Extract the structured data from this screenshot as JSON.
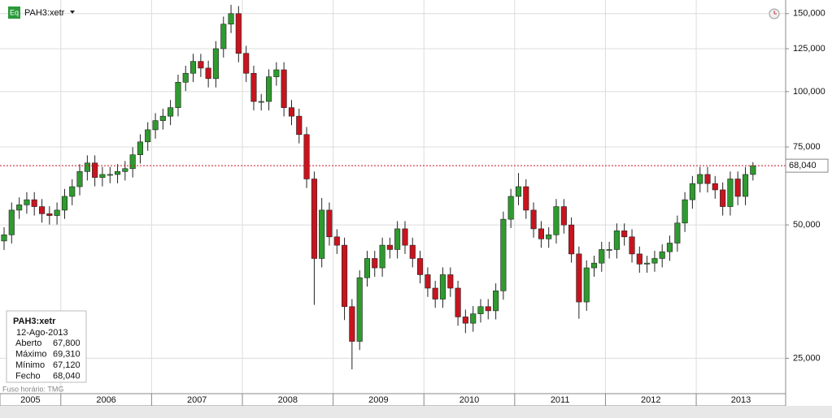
{
  "chart_data": {
    "type": "candlestick",
    "title": "PAH3:xetr",
    "x": [
      2005.375,
      2005.458,
      2005.542,
      2005.625,
      2005.708,
      2005.792,
      2005.875,
      2005.958,
      2006.042,
      2006.125,
      2006.208,
      2006.292,
      2006.375,
      2006.458,
      2006.542,
      2006.625,
      2006.708,
      2006.792,
      2006.875,
      2006.958,
      2007.042,
      2007.125,
      2007.208,
      2007.292,
      2007.375,
      2007.458,
      2007.542,
      2007.625,
      2007.708,
      2007.792,
      2007.875,
      2007.958,
      2008.042,
      2008.125,
      2008.208,
      2008.292,
      2008.375,
      2008.458,
      2008.542,
      2008.625,
      2008.708,
      2008.792,
      2008.875,
      2008.958,
      2009.042,
      2009.125,
      2009.208,
      2009.292,
      2009.375,
      2009.458,
      2009.542,
      2009.625,
      2009.708,
      2009.792,
      2009.875,
      2009.958,
      2010.042,
      2010.125,
      2010.208,
      2010.292,
      2010.375,
      2010.458,
      2010.542,
      2010.625,
      2010.708,
      2010.792,
      2010.875,
      2010.958,
      2011.042,
      2011.125,
      2011.208,
      2011.292,
      2011.375,
      2011.458,
      2011.542,
      2011.625,
      2011.708,
      2011.792,
      2011.875,
      2011.958,
      2012.042,
      2012.125,
      2012.208,
      2012.292,
      2012.375,
      2012.458,
      2012.542,
      2012.625,
      2012.708,
      2012.792,
      2012.875,
      2012.958,
      2013.042,
      2013.125,
      2013.208,
      2013.292,
      2013.375,
      2013.458,
      2013.542,
      2013.625
    ],
    "open": [
      46000,
      47500,
      54000,
      55500,
      57000,
      55000,
      53000,
      52500,
      54000,
      58000,
      61000,
      66000,
      69000,
      64000,
      65000,
      65000,
      66000,
      67000,
      72000,
      77000,
      82000,
      86000,
      88000,
      92000,
      105000,
      110000,
      117000,
      113000,
      107000,
      125000,
      142000,
      150000,
      122000,
      110000,
      95000,
      95000,
      108000,
      112000,
      92000,
      88000,
      80000,
      63500,
      42000,
      54000,
      47000,
      45000,
      32700,
      27300,
      38000,
      42000,
      40000,
      45000,
      44000,
      49000,
      45000,
      42000,
      38600,
      36000,
      34000,
      38600,
      36000,
      31000,
      30000,
      31500,
      32700,
      32000,
      35500,
      51500,
      58000,
      61000,
      54000,
      49000,
      46500,
      47500,
      55000,
      50000,
      43000,
      33500,
      40000,
      41000,
      44000,
      44000,
      48500,
      47000,
      43000,
      40800,
      41000,
      42000,
      43500,
      45500,
      50500,
      57000,
      62000,
      65000,
      62000,
      60000,
      55000,
      63500,
      58000,
      65000
    ],
    "high": [
      49400,
      56200,
      57700,
      59300,
      59300,
      57200,
      55100,
      56200,
      60300,
      63400,
      68600,
      71800,
      71800,
      67600,
      67600,
      68600,
      69700,
      74900,
      80100,
      85300,
      89400,
      91500,
      95700,
      109200,
      114400,
      121700,
      121700,
      117500,
      130000,
      147700,
      157000,
      156000,
      126900,
      114400,
      98800,
      112300,
      116500,
      116500,
      95700,
      91500,
      83200,
      66000,
      57500,
      56200,
      48900,
      46800,
      34000,
      39500,
      43700,
      43700,
      46800,
      46800,
      51000,
      51000,
      46800,
      43700,
      40100,
      37400,
      40100,
      40100,
      37400,
      32200,
      32800,
      34000,
      34000,
      36900,
      53600,
      60300,
      65500,
      63400,
      56200,
      51000,
      49400,
      57200,
      57200,
      52000,
      44700,
      41600,
      42600,
      45800,
      45800,
      50400,
      50400,
      48900,
      44700,
      42600,
      43700,
      45200,
      47300,
      52500,
      59300,
      64500,
      67600,
      67600,
      64500,
      62400,
      66000,
      66000,
      67600,
      69310
    ],
    "low": [
      43900,
      45400,
      51600,
      53000,
      52500,
      50600,
      50100,
      50100,
      51600,
      55400,
      58300,
      63000,
      61100,
      61100,
      62100,
      62100,
      63000,
      64000,
      68800,
      73500,
      78300,
      82100,
      84000,
      87900,
      100300,
      105100,
      107900,
      102200,
      102200,
      119400,
      135600,
      116500,
      105100,
      90700,
      90700,
      90700,
      103100,
      87900,
      84000,
      76400,
      60600,
      33000,
      40100,
      44900,
      43000,
      30500,
      23600,
      26100,
      36300,
      38200,
      38200,
      42000,
      42000,
      43000,
      40100,
      36900,
      34400,
      32500,
      32500,
      34400,
      29600,
      28500,
      28700,
      30100,
      30600,
      30600,
      33900,
      49200,
      55400,
      51600,
      46800,
      44400,
      44400,
      45400,
      47800,
      41100,
      30700,
      32000,
      38200,
      39200,
      42000,
      42000,
      44900,
      41100,
      39000,
      39000,
      39200,
      40100,
      41500,
      43500,
      48200,
      54400,
      59200,
      59200,
      57300,
      52500,
      52500,
      55400,
      55400,
      63000
    ],
    "close": [
      47500,
      54000,
      55500,
      57000,
      55000,
      53000,
      52500,
      54000,
      58000,
      61000,
      66000,
      69000,
      64000,
      65000,
      65000,
      66000,
      67000,
      72000,
      77000,
      82000,
      86000,
      88000,
      92000,
      105000,
      110000,
      117000,
      113000,
      107000,
      125000,
      142000,
      150000,
      122000,
      110000,
      95000,
      95000,
      108000,
      112000,
      92000,
      88000,
      80000,
      63500,
      42000,
      54000,
      47000,
      45000,
      32700,
      27300,
      38000,
      42000,
      40000,
      45000,
      44000,
      49000,
      45000,
      42000,
      38600,
      36000,
      34000,
      38600,
      36000,
      31000,
      30000,
      31500,
      32700,
      32000,
      35500,
      51500,
      58000,
      61000,
      54000,
      49000,
      46500,
      47500,
      55000,
      50000,
      43000,
      33500,
      40000,
      41000,
      44000,
      44000,
      48500,
      47000,
      43000,
      40800,
      41000,
      42000,
      43500,
      45500,
      50500,
      57000,
      62000,
      65000,
      62000,
      60000,
      55000,
      63500,
      58000,
      65000,
      68040
    ],
    "up_color": "#2f9a2f",
    "down_color": "#c8141e",
    "ylim": [
      20800,
      161000
    ],
    "log_y": true,
    "yticks": [
      {
        "value": 25000,
        "label": "25,000"
      },
      {
        "value": 50000,
        "label": "50,000"
      },
      {
        "value": 75000,
        "label": "75,000"
      },
      {
        "value": 100000,
        "label": "100,000"
      },
      {
        "value": 125000,
        "label": "125,000"
      },
      {
        "value": 150000,
        "label": "150,000"
      }
    ],
    "xlim": [
      2005.33,
      2013.985
    ],
    "xticks": [
      {
        "value": 2005,
        "label": "2005"
      },
      {
        "value": 2006,
        "label": "2006"
      },
      {
        "value": 2007,
        "label": "2007"
      },
      {
        "value": 2008,
        "label": "2008"
      },
      {
        "value": 2009,
        "label": "2009"
      },
      {
        "value": 2010,
        "label": "2010"
      },
      {
        "value": 2011,
        "label": "2011"
      },
      {
        "value": 2012,
        "label": "2012"
      },
      {
        "value": 2013,
        "label": "2013"
      }
    ],
    "grid": true,
    "last_price": {
      "value": 68040,
      "label": "68,040"
    },
    "footnote": "Fuso horário: TMG",
    "info": {
      "symbol": "PAH3:xetr",
      "date": "12-Ago-2013",
      "rows": [
        [
          "Aberto",
          "67,800"
        ],
        [
          "Máximo",
          "69,310"
        ],
        [
          "Mínimo",
          "67,120"
        ],
        [
          "Fecho",
          "68,040"
        ]
      ]
    }
  }
}
